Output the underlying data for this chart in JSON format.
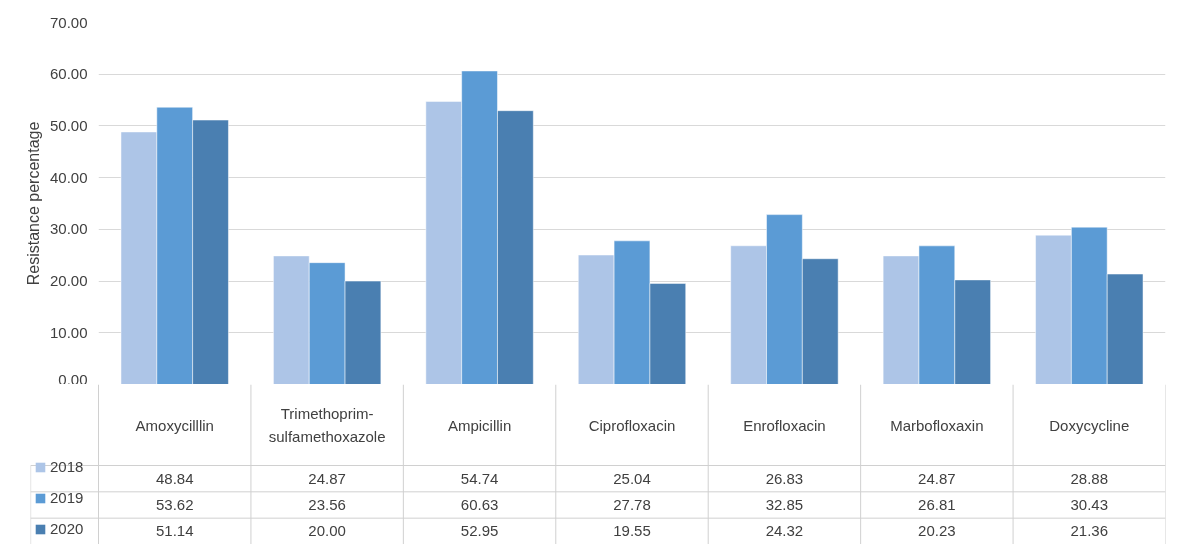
{
  "chart_data": {
    "type": "bar",
    "ylabel": "Resistance percentage",
    "categories": [
      "Amoxycilllin",
      "Trimethoprim-sulfamethoxazole",
      "Ampicillin",
      "Ciprofloxacin",
      "Enrofloxacin",
      "Marbofloxaxin",
      "Doxycycline"
    ],
    "series": [
      {
        "name": "2018",
        "color": "#adc5e7",
        "values": [
          48.84,
          24.87,
          54.74,
          25.04,
          26.83,
          24.87,
          28.88
        ],
        "value_labels": [
          "48.84",
          "24.87",
          "54.74",
          "25.04",
          "26.83",
          "24.87",
          "28.88"
        ]
      },
      {
        "name": "2019",
        "color": "#5b9bd5",
        "values": [
          53.62,
          23.56,
          60.63,
          27.78,
          32.85,
          26.81,
          30.43
        ],
        "value_labels": [
          "53.62",
          "23.56",
          "60.63",
          "27.78",
          "32.85",
          "26.81",
          "30.43"
        ]
      },
      {
        "name": "2020",
        "color": "#4a7fb1",
        "values": [
          51.14,
          20.0,
          52.95,
          19.55,
          24.32,
          20.23,
          21.36
        ],
        "value_labels": [
          "51.14",
          "20.00",
          "52.95",
          "19.55",
          "24.32",
          "20.23",
          "21.36"
        ]
      }
    ],
    "ylim": [
      0,
      70
    ],
    "yticks": [
      {
        "value": 0,
        "label": "0.00"
      },
      {
        "value": 10,
        "label": "10.00"
      },
      {
        "value": 20,
        "label": "20.00"
      },
      {
        "value": 30,
        "label": "30.00"
      },
      {
        "value": 40,
        "label": "40.00"
      },
      {
        "value": 50,
        "label": "50.00"
      },
      {
        "value": 60,
        "label": "60.00"
      },
      {
        "value": 70,
        "label": "70.00"
      }
    ],
    "grid": "y",
    "legend": "bottom left"
  }
}
